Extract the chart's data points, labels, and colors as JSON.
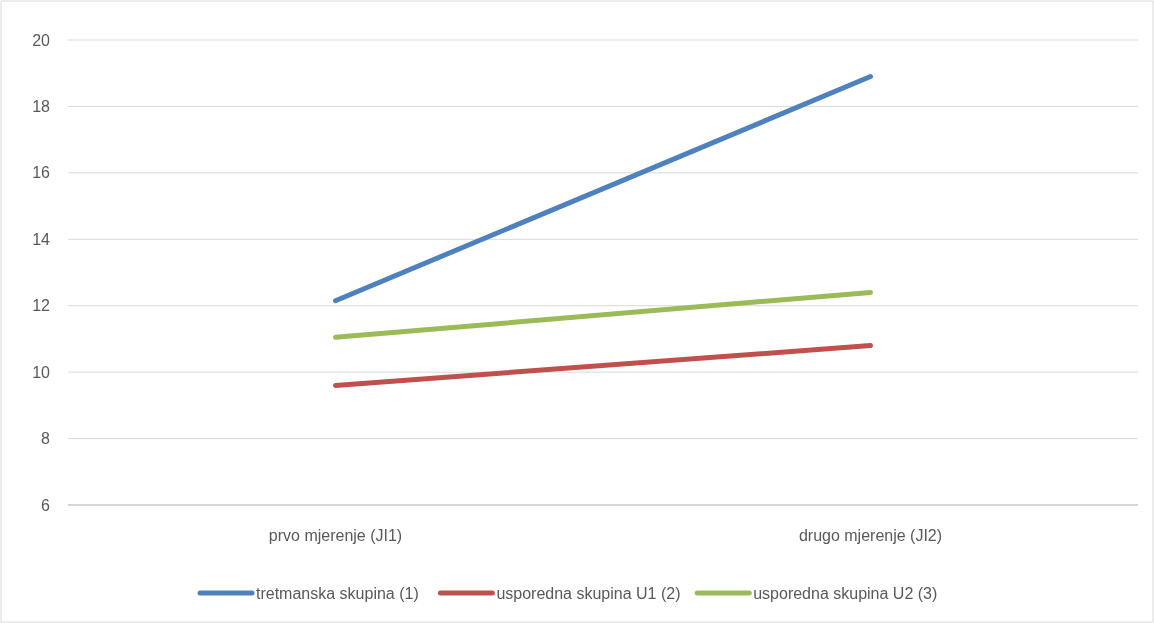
{
  "chart_data": {
    "type": "line",
    "categories": [
      "prvo mjerenje (JI1)",
      "drugo mjerenje (JI2)"
    ],
    "series": [
      {
        "name": "tretmanska skupina (1)",
        "color": "#4f81bd",
        "values": [
          12.15,
          18.9
        ]
      },
      {
        "name": "usporedna skupina U1 (2)",
        "color": "#c0504d",
        "values": [
          9.6,
          10.8
        ]
      },
      {
        "name": "usporedna skupina U2 (3)",
        "color": "#9bbb59",
        "values": [
          11.05,
          12.4
        ]
      }
    ],
    "ylim": [
      6,
      20
    ],
    "yticks": [
      6,
      8,
      10,
      12,
      14,
      16,
      18,
      20
    ],
    "grid": "y",
    "legend": "bottom",
    "marker": "none",
    "line_style": "solid"
  }
}
